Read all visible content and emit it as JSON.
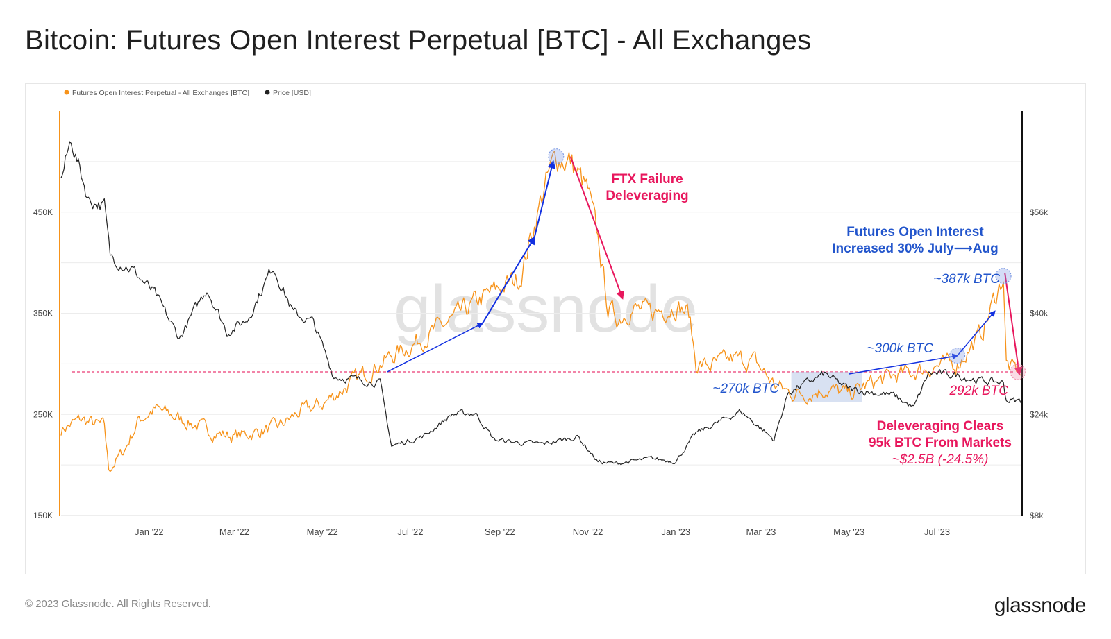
{
  "title": "Bitcoin: Futures Open Interest Perpetual [BTC] - All Exchanges",
  "footer": {
    "copyright": "© 2023 Glassnode. All Rights Reserved.",
    "logo": "glassnode"
  },
  "watermark": "glassnode",
  "colors": {
    "oi": "#F7931A",
    "price": "#222222",
    "blue": "#1230E0",
    "red": "#E8175D",
    "annot_blue": "#2255CC"
  },
  "chart_data": {
    "type": "line",
    "legend": {
      "placement": "top-left",
      "items": [
        {
          "label": "Futures Open Interest Perpetual - All Exchanges [BTC]",
          "color": "#F7931A"
        },
        {
          "label": "Price [USD]",
          "color": "#222222"
        }
      ]
    },
    "x_ticks": [
      "Jan '22",
      "Mar '22",
      "May '22",
      "Jul '22",
      "Sep '22",
      "Nov '22",
      "Jan '23",
      "Mar '23",
      "May '23",
      "Jul '23"
    ],
    "x_tick_dates": [
      "2022-01-01",
      "2022-03-01",
      "2022-05-01",
      "2022-07-01",
      "2022-09-01",
      "2022-11-01",
      "2023-01-01",
      "2023-03-01",
      "2023-05-01",
      "2023-07-01"
    ],
    "x_range": [
      "2021-11-01",
      "2023-08-28"
    ],
    "y_left": {
      "ticks": [
        "150K",
        "250K",
        "350K",
        "450K"
      ],
      "tick_values": [
        150000,
        250000,
        350000,
        450000
      ],
      "range": [
        150000,
        550000
      ]
    },
    "y_right": {
      "ticks": [
        "$8k",
        "$24k",
        "$40k",
        "$56k"
      ],
      "tick_values": [
        8000,
        24000,
        40000,
        56000
      ],
      "range": [
        8000,
        72000
      ]
    },
    "series": [
      {
        "name": "Futures Open Interest Perpetual - All Exchanges [BTC]",
        "axis": "left",
        "points": [
          [
            "2021-11-01",
            235000
          ],
          [
            "2021-11-15",
            245000
          ],
          [
            "2021-11-25",
            240000
          ],
          [
            "2021-12-01",
            238000
          ],
          [
            "2021-12-04",
            195000
          ],
          [
            "2021-12-15",
            215000
          ],
          [
            "2021-12-25",
            245000
          ],
          [
            "2022-01-05",
            255000
          ],
          [
            "2022-01-15",
            250000
          ],
          [
            "2022-02-01",
            240000
          ],
          [
            "2022-02-15",
            232000
          ],
          [
            "2022-03-01",
            228000
          ],
          [
            "2022-03-15",
            232000
          ],
          [
            "2022-04-01",
            238000
          ],
          [
            "2022-04-15",
            252000
          ],
          [
            "2022-05-01",
            260000
          ],
          [
            "2022-05-15",
            275000
          ],
          [
            "2022-06-01",
            292000
          ],
          [
            "2022-06-15",
            305000
          ],
          [
            "2022-07-01",
            318000
          ],
          [
            "2022-07-15",
            330000
          ],
          [
            "2022-08-01",
            345000
          ],
          [
            "2022-08-15",
            360000
          ],
          [
            "2022-09-01",
            375000
          ],
          [
            "2022-09-15",
            385000
          ],
          [
            "2022-10-01",
            470000
          ],
          [
            "2022-10-10",
            505000
          ],
          [
            "2022-10-20",
            500000
          ],
          [
            "2022-11-01",
            470000
          ],
          [
            "2022-11-09",
            415000
          ],
          [
            "2022-11-15",
            355000
          ],
          [
            "2022-11-22",
            345000
          ],
          [
            "2022-12-01",
            355000
          ],
          [
            "2022-12-15",
            350000
          ],
          [
            "2023-01-01",
            358000
          ],
          [
            "2023-01-10",
            350000
          ],
          [
            "2023-01-15",
            300000
          ],
          [
            "2023-01-25",
            298000
          ],
          [
            "2023-02-10",
            305000
          ],
          [
            "2023-02-25",
            302000
          ],
          [
            "2023-03-10",
            280000
          ],
          [
            "2023-03-20",
            272000
          ],
          [
            "2023-04-01",
            270000
          ],
          [
            "2023-04-15",
            275000
          ],
          [
            "2023-05-01",
            270000
          ],
          [
            "2023-05-15",
            280000
          ],
          [
            "2023-06-01",
            288000
          ],
          [
            "2023-06-15",
            292000
          ],
          [
            "2023-07-01",
            298000
          ],
          [
            "2023-07-15",
            300000
          ],
          [
            "2023-08-01",
            330000
          ],
          [
            "2023-08-10",
            365000
          ],
          [
            "2023-08-16",
            387000
          ],
          [
            "2023-08-18",
            300000
          ],
          [
            "2023-08-22",
            295000
          ],
          [
            "2023-08-28",
            292000
          ]
        ]
      },
      {
        "name": "Price [USD]",
        "axis": "right",
        "points": [
          [
            "2021-11-01",
            61000
          ],
          [
            "2021-11-08",
            67500
          ],
          [
            "2021-11-20",
            58000
          ],
          [
            "2021-12-01",
            57000
          ],
          [
            "2021-12-05",
            49000
          ],
          [
            "2021-12-20",
            47000
          ],
          [
            "2022-01-05",
            43000
          ],
          [
            "2022-01-22",
            36000
          ],
          [
            "2022-02-10",
            44000
          ],
          [
            "2022-02-24",
            37000
          ],
          [
            "2022-03-10",
            39000
          ],
          [
            "2022-03-28",
            47500
          ],
          [
            "2022-04-11",
            40000
          ],
          [
            "2022-04-25",
            38500
          ],
          [
            "2022-05-09",
            30000
          ],
          [
            "2022-05-25",
            29500
          ],
          [
            "2022-06-10",
            29000
          ],
          [
            "2022-06-18",
            19000
          ],
          [
            "2022-07-10",
            20500
          ],
          [
            "2022-07-30",
            24000
          ],
          [
            "2022-08-15",
            24200
          ],
          [
            "2022-08-28",
            20000
          ],
          [
            "2022-09-15",
            19500
          ],
          [
            "2022-10-01",
            19300
          ],
          [
            "2022-10-25",
            20500
          ],
          [
            "2022-11-08",
            16500
          ],
          [
            "2022-11-20",
            16200
          ],
          [
            "2022-12-15",
            17000
          ],
          [
            "2023-01-01",
            16600
          ],
          [
            "2023-01-15",
            21000
          ],
          [
            "2023-02-15",
            24500
          ],
          [
            "2023-03-10",
            20000
          ],
          [
            "2023-03-20",
            27500
          ],
          [
            "2023-04-14",
            30400
          ],
          [
            "2023-05-01",
            28000
          ],
          [
            "2023-06-01",
            27000
          ],
          [
            "2023-06-15",
            25000
          ],
          [
            "2023-06-25",
            30500
          ],
          [
            "2023-07-15",
            30200
          ],
          [
            "2023-08-01",
            29300
          ],
          [
            "2023-08-16",
            29000
          ],
          [
            "2023-08-18",
            26300
          ],
          [
            "2023-08-28",
            26100
          ]
        ]
      }
    ],
    "reference_line": {
      "axis": "left",
      "value": 292000
    },
    "annotations": [
      {
        "id": "ftx",
        "lines": [
          "FTX Failure",
          "Deleveraging"
        ],
        "color": "red",
        "bold": true
      },
      {
        "id": "futures_oi",
        "lines": [
          "Futures Open Interest",
          "Increased 30% July⟶Aug"
        ],
        "color": "blue",
        "bold": true
      },
      {
        "id": "v387",
        "lines": [
          "~387k BTC"
        ],
        "color": "blue",
        "italic": true
      },
      {
        "id": "v300",
        "lines": [
          "~300k BTC"
        ],
        "color": "blue",
        "italic": true
      },
      {
        "id": "v270",
        "lines": [
          "~270k BTC"
        ],
        "color": "blue",
        "italic": true
      },
      {
        "id": "v292",
        "lines": [
          "292k BTC"
        ],
        "color": "red",
        "italic": true
      },
      {
        "id": "delev",
        "lines": [
          "Deleveraging Clears",
          "95k BTC From Markets"
        ],
        "color": "red",
        "bold": true
      },
      {
        "id": "delev_usd",
        "lines": [
          "~$2.5B (-24.5%)"
        ],
        "color": "red",
        "italic": true
      }
    ]
  }
}
